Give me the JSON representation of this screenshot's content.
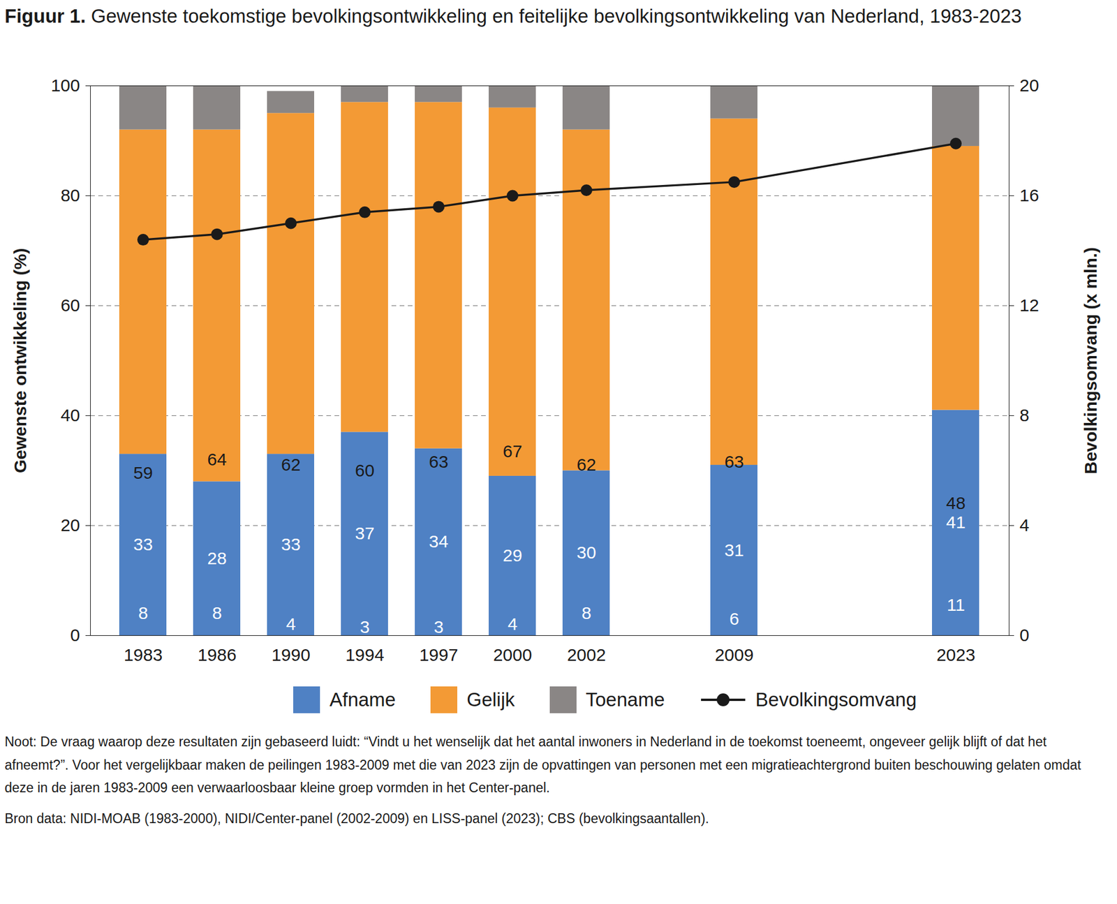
{
  "chart_data": {
    "type": "bar",
    "stacked": true,
    "data_labels": true,
    "grid": true,
    "legend": "bottom",
    "title": "Figuur 1. Gewenste toekomstige bevolkingsontwikkeling en feitelijke bevolkingsontwikkeling van Nederland, 1983-2023",
    "note": "Noot: De vraag waarop deze resultaten zijn gebaseerd luidt: “Vindt u het wenselijk dat het aantal inwoners in Nederland in de toekomst toeneemt, ongeveer gelijk blijft of dat het afneemt?”. Voor het vergelijkbaar maken de peilingen 1983-2009 met die van 2023 zijn de opvattingen van personen met een migratieachtergrond buiten beschouwing gelaten omdat deze in de jaren 1983-2009 een verwaarloosbaar kleine groep vormden in het Center-panel.",
    "source": "Bron data: NIDI-MOAB (1983-2000), NIDI/Center-panel (2002-2009) en LISS-panel (2023); CBS (bevolkingsaantallen).",
    "categories": [
      "1983",
      "1986",
      "1990",
      "1994",
      "1997",
      "2000",
      "2002",
      null,
      "2009",
      null,
      null,
      "2023"
    ],
    "y_label": "Gewenste ontwikkeling (%)",
    "y2_label": "Bevolkingsomvang (x mln.)",
    "ylim": [
      0,
      100
    ],
    "yticks": [
      0,
      20,
      40,
      60,
      80,
      100
    ],
    "y2lim": [
      0,
      20
    ],
    "y2ticks": [
      0,
      4,
      8,
      12,
      16,
      20
    ],
    "series": [
      {
        "name": "Afname",
        "color": "#4f81c4",
        "values": [
          33,
          28,
          33,
          37,
          34,
          29,
          30,
          null,
          31,
          null,
          null,
          41
        ]
      },
      {
        "name": "Gelijk",
        "color": "#f39a35",
        "values": [
          59,
          64,
          62,
          60,
          63,
          67,
          62,
          null,
          63,
          null,
          null,
          48
        ]
      },
      {
        "name": "Toename",
        "color": "#8a8685",
        "values": [
          8,
          8,
          4,
          3,
          3,
          4,
          8,
          null,
          6,
          null,
          null,
          11
        ]
      },
      {
        "name": "Bevolkingsomvang",
        "type": "line",
        "axis": "y2",
        "color": "#1a1a1a",
        "marker": "circle",
        "values": [
          14.4,
          14.6,
          15.0,
          15.4,
          15.6,
          16.0,
          16.2,
          null,
          16.5,
          null,
          null,
          17.9
        ]
      }
    ]
  }
}
